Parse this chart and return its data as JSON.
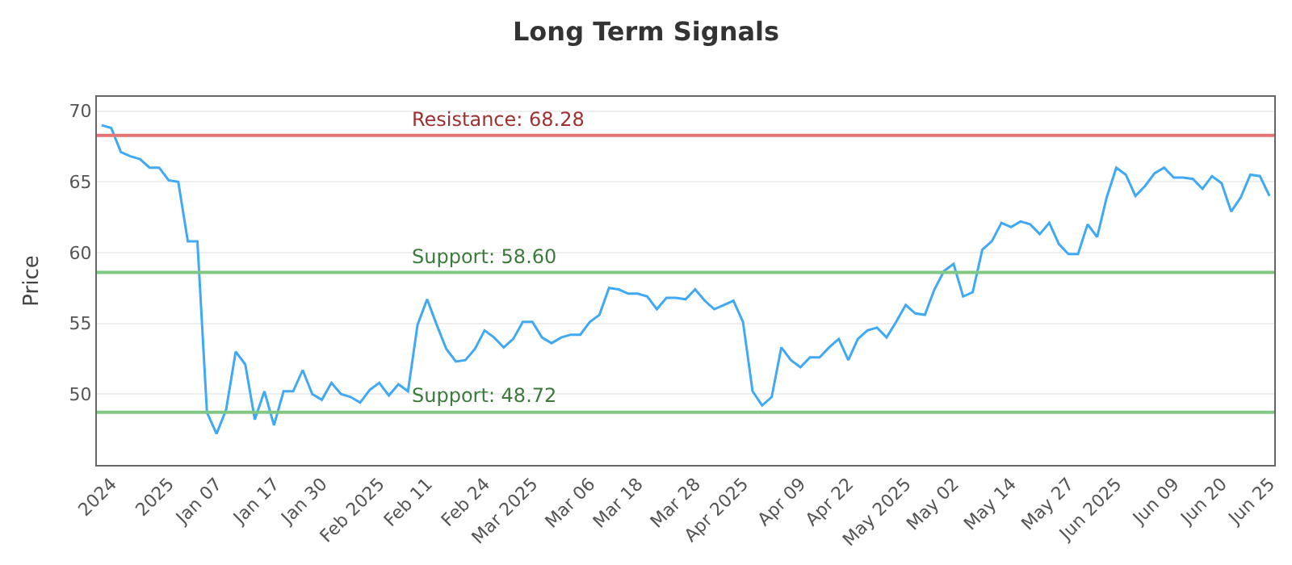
{
  "chart_data": {
    "type": "line",
    "title": "Long Term Signals",
    "ylabel": "Price",
    "categories": [
      null,
      "2024",
      null,
      null,
      null,
      null,
      null,
      "2025",
      null,
      null,
      null,
      null,
      "Jan 07",
      null,
      null,
      null,
      null,
      null,
      "Jan 17",
      null,
      null,
      null,
      null,
      "Jan 30",
      null,
      null,
      null,
      null,
      null,
      "Feb 2025",
      null,
      null,
      null,
      null,
      "Feb 11",
      null,
      null,
      null,
      null,
      null,
      "Feb 24",
      null,
      null,
      null,
      null,
      "Mar 2025",
      null,
      null,
      null,
      null,
      null,
      "Mar 06",
      null,
      null,
      null,
      null,
      "Mar 18",
      null,
      null,
      null,
      null,
      null,
      "Mar 28",
      null,
      null,
      null,
      null,
      "Apr 2025",
      null,
      null,
      null,
      null,
      null,
      "Apr 09",
      null,
      null,
      null,
      null,
      "Apr 22",
      null,
      null,
      null,
      null,
      null,
      "May 2025",
      null,
      null,
      null,
      null,
      "May 02",
      null,
      null,
      null,
      null,
      null,
      "May 14",
      null,
      null,
      null,
      null,
      null,
      "May 27",
      null,
      null,
      null,
      null,
      "Jun 2025",
      null,
      null,
      null,
      null,
      null,
      "Jun 09",
      null,
      null,
      null,
      null,
      "Jun 20",
      null,
      null,
      null,
      null,
      "Jun 25"
    ],
    "series": [
      {
        "color": "#3fa9f5",
        "values": [
          69.0,
          68.8,
          67.1,
          66.8,
          66.6,
          66.0,
          66.0,
          65.1,
          65.0,
          60.8,
          60.8,
          48.7,
          47.2,
          48.9,
          53.0,
          52.1,
          48.2,
          50.2,
          47.8,
          50.2,
          50.2,
          51.7,
          50.0,
          49.6,
          50.8,
          50.0,
          49.8,
          49.4,
          50.3,
          50.8,
          49.9,
          50.7,
          50.2,
          54.9,
          56.7,
          54.9,
          53.2,
          52.3,
          52.4,
          53.2,
          54.5,
          54.0,
          53.3,
          53.9,
          55.1,
          55.1,
          54.0,
          53.6,
          54.0,
          54.2,
          54.2,
          55.1,
          55.6,
          57.5,
          57.4,
          57.1,
          57.1,
          56.9,
          56.0,
          56.8,
          56.8,
          56.7,
          57.4,
          56.6,
          56.0,
          56.3,
          56.6,
          55.1,
          50.2,
          49.2,
          49.8,
          53.3,
          52.4,
          51.9,
          52.6,
          52.6,
          53.3,
          53.9,
          52.4,
          53.9,
          54.5,
          54.7,
          54.0,
          55.1,
          56.3,
          55.7,
          55.6,
          57.4,
          58.7,
          59.2,
          56.9,
          57.2,
          60.2,
          60.8,
          62.1,
          61.8,
          62.2,
          62.0,
          61.3,
          62.1,
          60.6,
          59.9,
          59.9,
          62.0,
          61.1,
          63.9,
          66.0,
          65.5,
          64.0,
          64.7,
          65.6,
          66.0,
          65.3,
          65.3,
          65.2,
          64.5,
          65.4,
          64.9,
          62.9,
          63.9,
          65.5,
          65.4,
          64.0
        ]
      }
    ],
    "ylim": [
      45,
      71
    ],
    "yticks": [
      50,
      55,
      60,
      65,
      70
    ],
    "grid": "y",
    "marker": "none",
    "line_style": "solid",
    "ref_lines": [
      {
        "axis": "y",
        "value": 68.28,
        "label": "Resistance: 68.28",
        "color": "#e57373"
      },
      {
        "axis": "y",
        "value": 58.6,
        "label": "Support: 58.60",
        "color": "#81c784"
      },
      {
        "axis": "y",
        "value": 48.72,
        "label": "Support: 48.72",
        "color": "#81c784"
      }
    ]
  }
}
